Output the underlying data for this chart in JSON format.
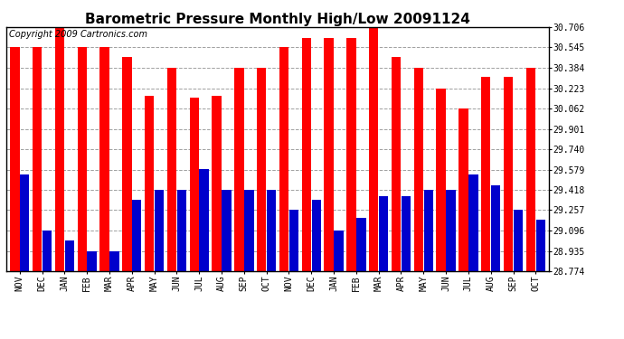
{
  "title": "Barometric Pressure Monthly High/Low 20091124",
  "copyright": "Copyright 2009 Cartronics.com",
  "months": [
    "NOV",
    "DEC",
    "JAN",
    "FEB",
    "MAR",
    "APR",
    "MAY",
    "JUN",
    "JUL",
    "AUG",
    "SEP",
    "OCT",
    "NOV",
    "DEC",
    "JAN",
    "FEB",
    "MAR",
    "APR",
    "MAY",
    "JUN",
    "JUL",
    "AUG",
    "SEP",
    "OCT"
  ],
  "highs": [
    30.545,
    30.545,
    30.706,
    30.545,
    30.545,
    30.467,
    30.161,
    30.384,
    30.145,
    30.161,
    30.384,
    30.384,
    30.545,
    30.623,
    30.623,
    30.623,
    30.706,
    30.467,
    30.384,
    30.223,
    30.062,
    30.315,
    30.315,
    30.384
  ],
  "lows": [
    29.54,
    29.096,
    29.016,
    28.935,
    28.935,
    29.34,
    29.418,
    29.418,
    29.579,
    29.418,
    29.418,
    29.418,
    29.257,
    29.34,
    29.096,
    29.195,
    29.37,
    29.37,
    29.418,
    29.418,
    29.54,
    29.457,
    29.257,
    29.18
  ],
  "ymin": 28.774,
  "ymax": 30.706,
  "yticks": [
    28.774,
    28.935,
    29.096,
    29.257,
    29.418,
    29.579,
    29.74,
    29.901,
    30.062,
    30.223,
    30.384,
    30.545,
    30.706
  ],
  "bar_color_high": "#ff0000",
  "bar_color_low": "#0000cc",
  "background_color": "#ffffff",
  "plot_background": "#ffffff",
  "grid_color": "#888888",
  "title_fontsize": 11,
  "copyright_fontsize": 7
}
